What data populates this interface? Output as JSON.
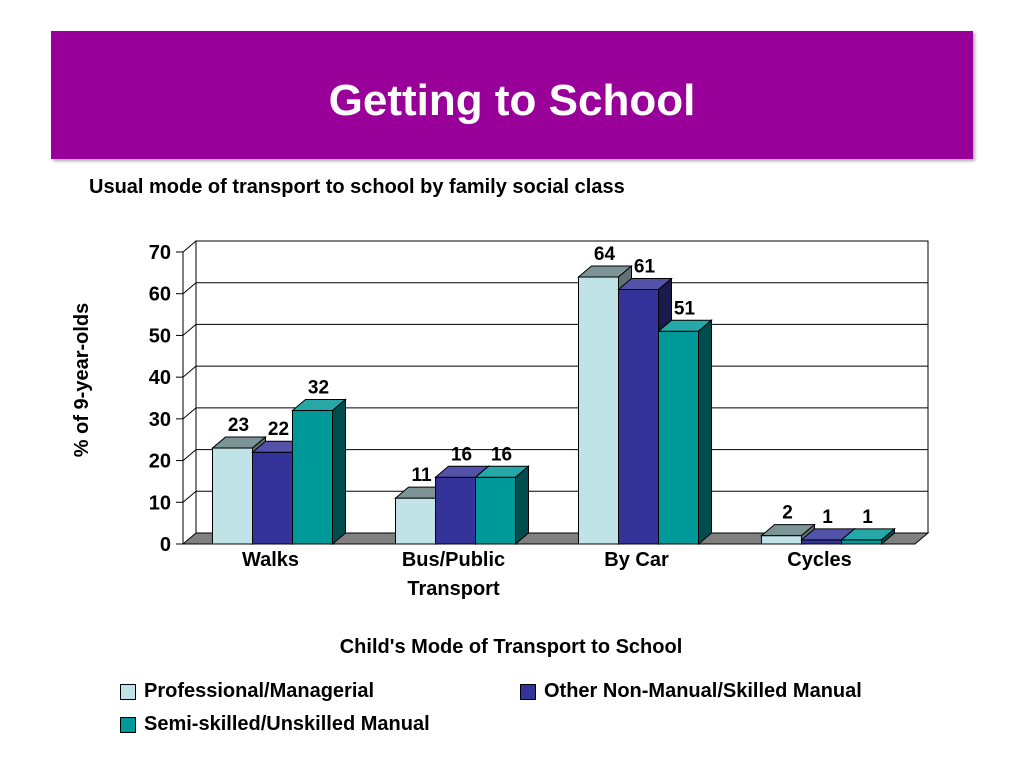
{
  "slide": {
    "title": "Getting to School",
    "subtitle": "Usual mode of transport to school by family social class"
  },
  "colors": {
    "title_band": "#990099",
    "series": [
      "#BFE3E6",
      "#333399",
      "#009999"
    ]
  },
  "chart_data": {
    "type": "bar",
    "style": "3d-clustered-column",
    "title": "Usual mode of transport to school by family social class",
    "xlabel": "Child's Mode of Transport to School",
    "ylabel": "% of 9-year-olds",
    "ylim": [
      0,
      70
    ],
    "yticks": [
      "0",
      "10",
      "20",
      "30",
      "40",
      "50",
      "60",
      "70"
    ],
    "grid": true,
    "legend_position": "bottom",
    "categories": [
      "Walks",
      "Bus/Public Transport",
      "By Car",
      "Cycles"
    ],
    "category_labels": [
      [
        "Walks"
      ],
      [
        "Bus/Public",
        "Transport"
      ],
      [
        "By Car"
      ],
      [
        "Cycles"
      ]
    ],
    "series": [
      {
        "name": "Professional/Managerial",
        "values": [
          23,
          11,
          64,
          2
        ]
      },
      {
        "name": "Other Non-Manual/Skilled Manual",
        "values": [
          22,
          16,
          61,
          1
        ]
      },
      {
        "name": "Semi-skilled/Unskilled Manual",
        "values": [
          32,
          16,
          51,
          1
        ]
      }
    ]
  }
}
